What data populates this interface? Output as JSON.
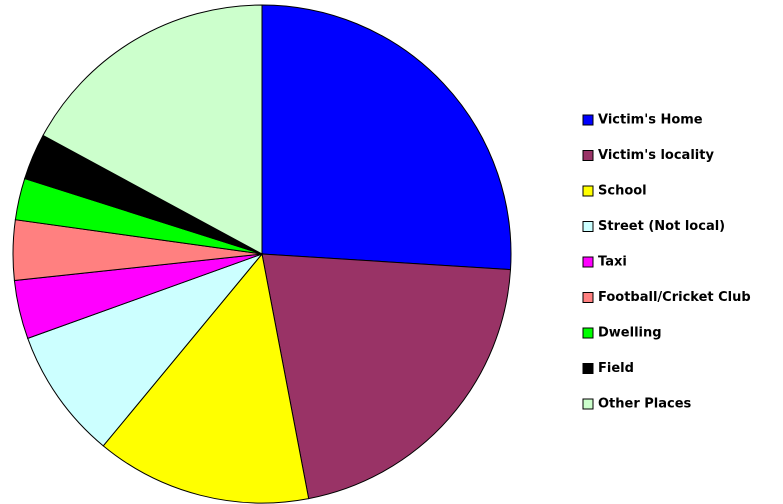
{
  "chart_data": {
    "type": "pie",
    "categories": [
      "Victim's Home",
      "Victim's locality",
      "School",
      "Street (Not local)",
      "Taxi",
      "Football/Cricket Club",
      "Dwelling",
      "Field",
      "Other Places"
    ],
    "values": [
      26,
      21,
      14,
      8.5,
      3.8,
      3.9,
      2.7,
      3,
      17.1
    ],
    "colors": [
      "#0000ff",
      "#993366",
      "#ffff00",
      "#ccffff",
      "#ff00ff",
      "#ff8080",
      "#00ff00",
      "#000000",
      "#ccffcc"
    ],
    "legend": "right"
  }
}
